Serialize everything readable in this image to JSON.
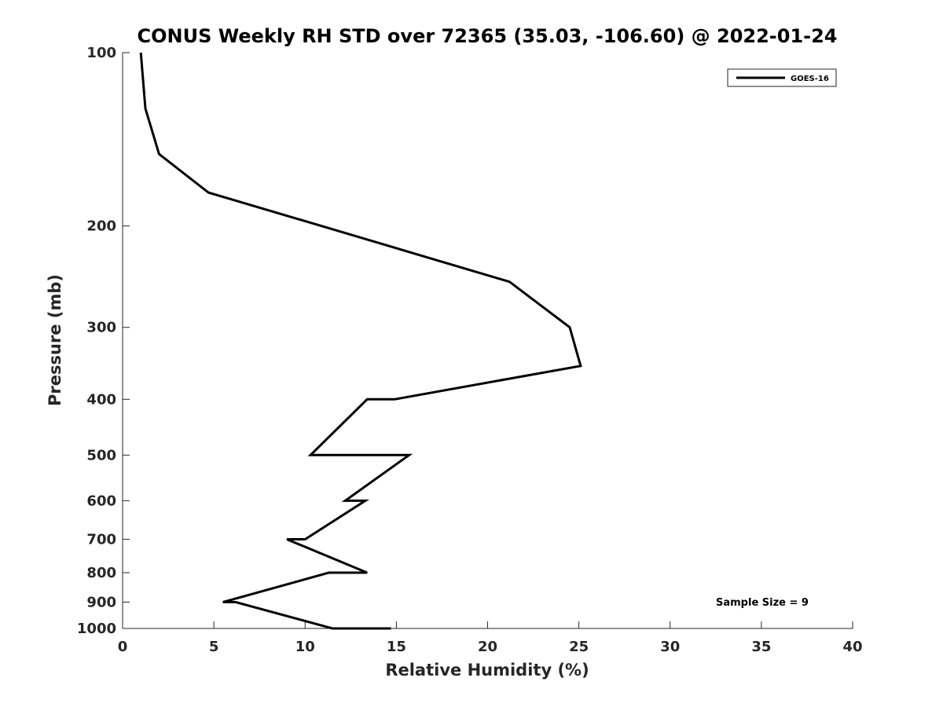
{
  "chart_data": {
    "type": "line",
    "title": "CONUS Weekly RH STD over 72365 (35.03, -106.60) @ 2022-01-24",
    "xlabel": "Relative Humidity (%)",
    "ylabel": "Pressure (mb)",
    "xlim": [
      0,
      40
    ],
    "ylim": [
      100,
      1000
    ],
    "y_scale": "log",
    "y_direction": "reversed",
    "x_ticks": [
      0,
      5,
      10,
      15,
      20,
      25,
      30,
      35,
      40
    ],
    "y_ticks": [
      100,
      200,
      300,
      400,
      500,
      600,
      700,
      800,
      900,
      1000
    ],
    "grid": false,
    "legend_position": "top-right",
    "annotation": "Sample Size = 9",
    "series": [
      {
        "name": "GOES-16",
        "color": "#000000",
        "points": [
          {
            "rh": 1.0,
            "p": 100
          },
          {
            "rh": 1.25,
            "p": 125
          },
          {
            "rh": 2.0,
            "p": 150
          },
          {
            "rh": 4.7,
            "p": 175
          },
          {
            "rh": 10.9,
            "p": 200
          },
          {
            "rh": 21.2,
            "p": 250
          },
          {
            "rh": 24.5,
            "p": 300
          },
          {
            "rh": 25.1,
            "p": 350
          },
          {
            "rh": 14.9,
            "p": 400
          },
          {
            "rh": 13.4,
            "p": 400
          },
          {
            "rh": 10.3,
            "p": 500
          },
          {
            "rh": 15.7,
            "p": 500
          },
          {
            "rh": 12.2,
            "p": 600
          },
          {
            "rh": 13.3,
            "p": 600
          },
          {
            "rh": 10.0,
            "p": 700
          },
          {
            "rh": 9.0,
            "p": 700
          },
          {
            "rh": 13.4,
            "p": 800
          },
          {
            "rh": 11.3,
            "p": 800
          },
          {
            "rh": 5.5,
            "p": 900
          },
          {
            "rh": 6.2,
            "p": 900
          },
          {
            "rh": 11.5,
            "p": 1000
          },
          {
            "rh": 14.7,
            "p": 1000
          }
        ]
      }
    ]
  }
}
